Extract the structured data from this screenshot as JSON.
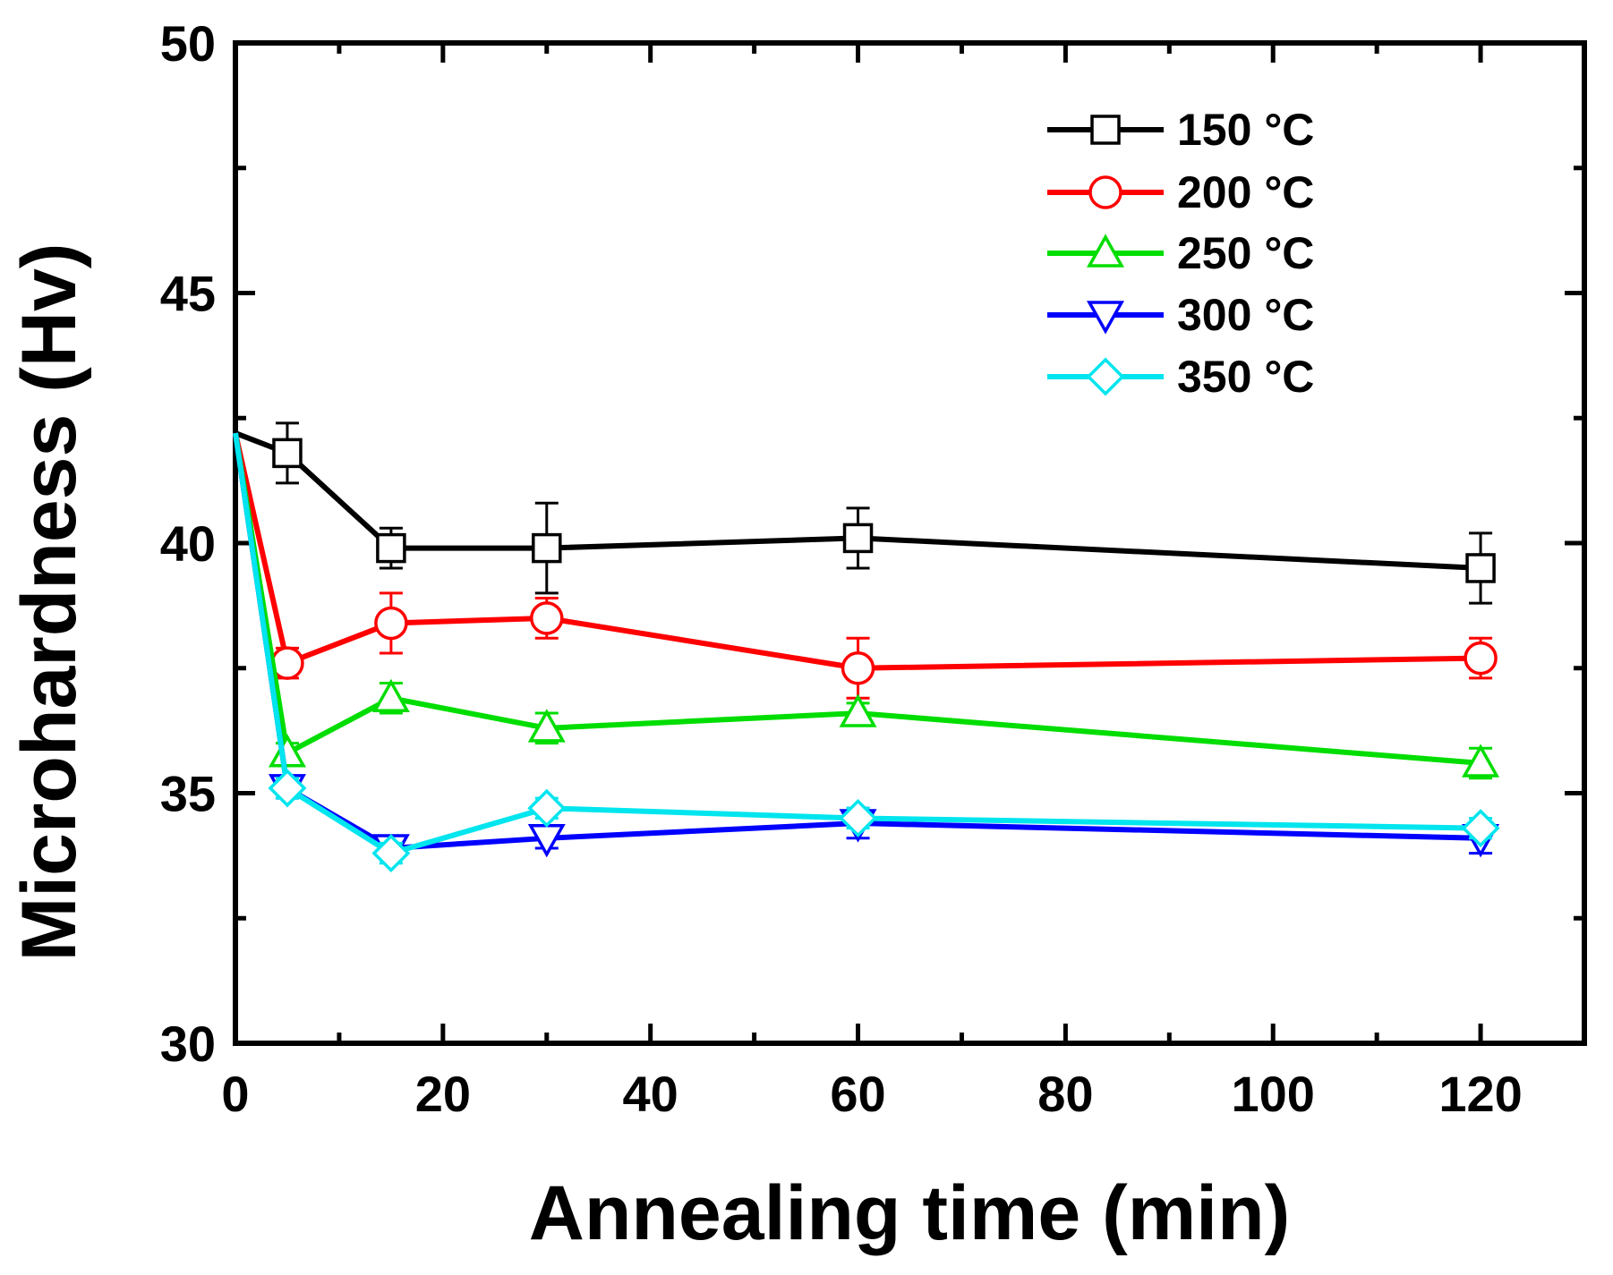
{
  "chart_data": {
    "type": "line",
    "title": "",
    "xlabel": "Annealing time (min)",
    "ylabel": "Microhardness (Hv)",
    "xlim": [
      0,
      130
    ],
    "ylim": [
      30,
      50
    ],
    "x_ticks": [
      0,
      20,
      40,
      60,
      80,
      100,
      120
    ],
    "y_ticks": [
      30,
      35,
      40,
      45,
      50
    ],
    "x_tick_labels": [
      "0",
      "20",
      "40",
      "60",
      "80",
      "100",
      "120"
    ],
    "y_tick_labels": [
      "30",
      "35",
      "40",
      "45",
      "50"
    ],
    "grid": false,
    "legend_position": "top-right",
    "x": [
      0,
      5,
      15,
      30,
      60,
      120
    ],
    "series": [
      {
        "name": "150 °C",
        "color": "#000000",
        "marker": "square",
        "values": [
          42.2,
          41.8,
          39.9,
          39.9,
          40.1,
          39.5
        ],
        "errors": [
          0,
          0.6,
          0.4,
          0.9,
          0.6,
          0.7
        ]
      },
      {
        "name": "200 °C",
        "color": "#ff0000",
        "marker": "circle",
        "values": [
          42.2,
          37.6,
          38.4,
          38.5,
          37.5,
          37.7
        ],
        "errors": [
          0,
          0.3,
          0.6,
          0.4,
          0.6,
          0.4
        ]
      },
      {
        "name": "250 °C",
        "color": "#00dd00",
        "marker": "triangle-up",
        "values": [
          42.2,
          35.8,
          36.9,
          36.3,
          36.6,
          35.6
        ],
        "errors": [
          0,
          0.2,
          0.3,
          0.3,
          0.2,
          0.3
        ]
      },
      {
        "name": "300 °C",
        "color": "#0000ff",
        "marker": "triangle-down",
        "values": [
          42.2,
          35.1,
          33.9,
          34.1,
          34.4,
          34.1
        ],
        "errors": [
          0,
          0.2,
          0.2,
          0.2,
          0.3,
          0.3
        ]
      },
      {
        "name": "350 °C",
        "color": "#00e5ee",
        "marker": "diamond",
        "values": [
          42.2,
          35.1,
          33.8,
          34.7,
          34.5,
          34.3
        ],
        "errors": [
          0,
          0.2,
          0.2,
          0.2,
          0.2,
          0.2
        ]
      }
    ]
  }
}
